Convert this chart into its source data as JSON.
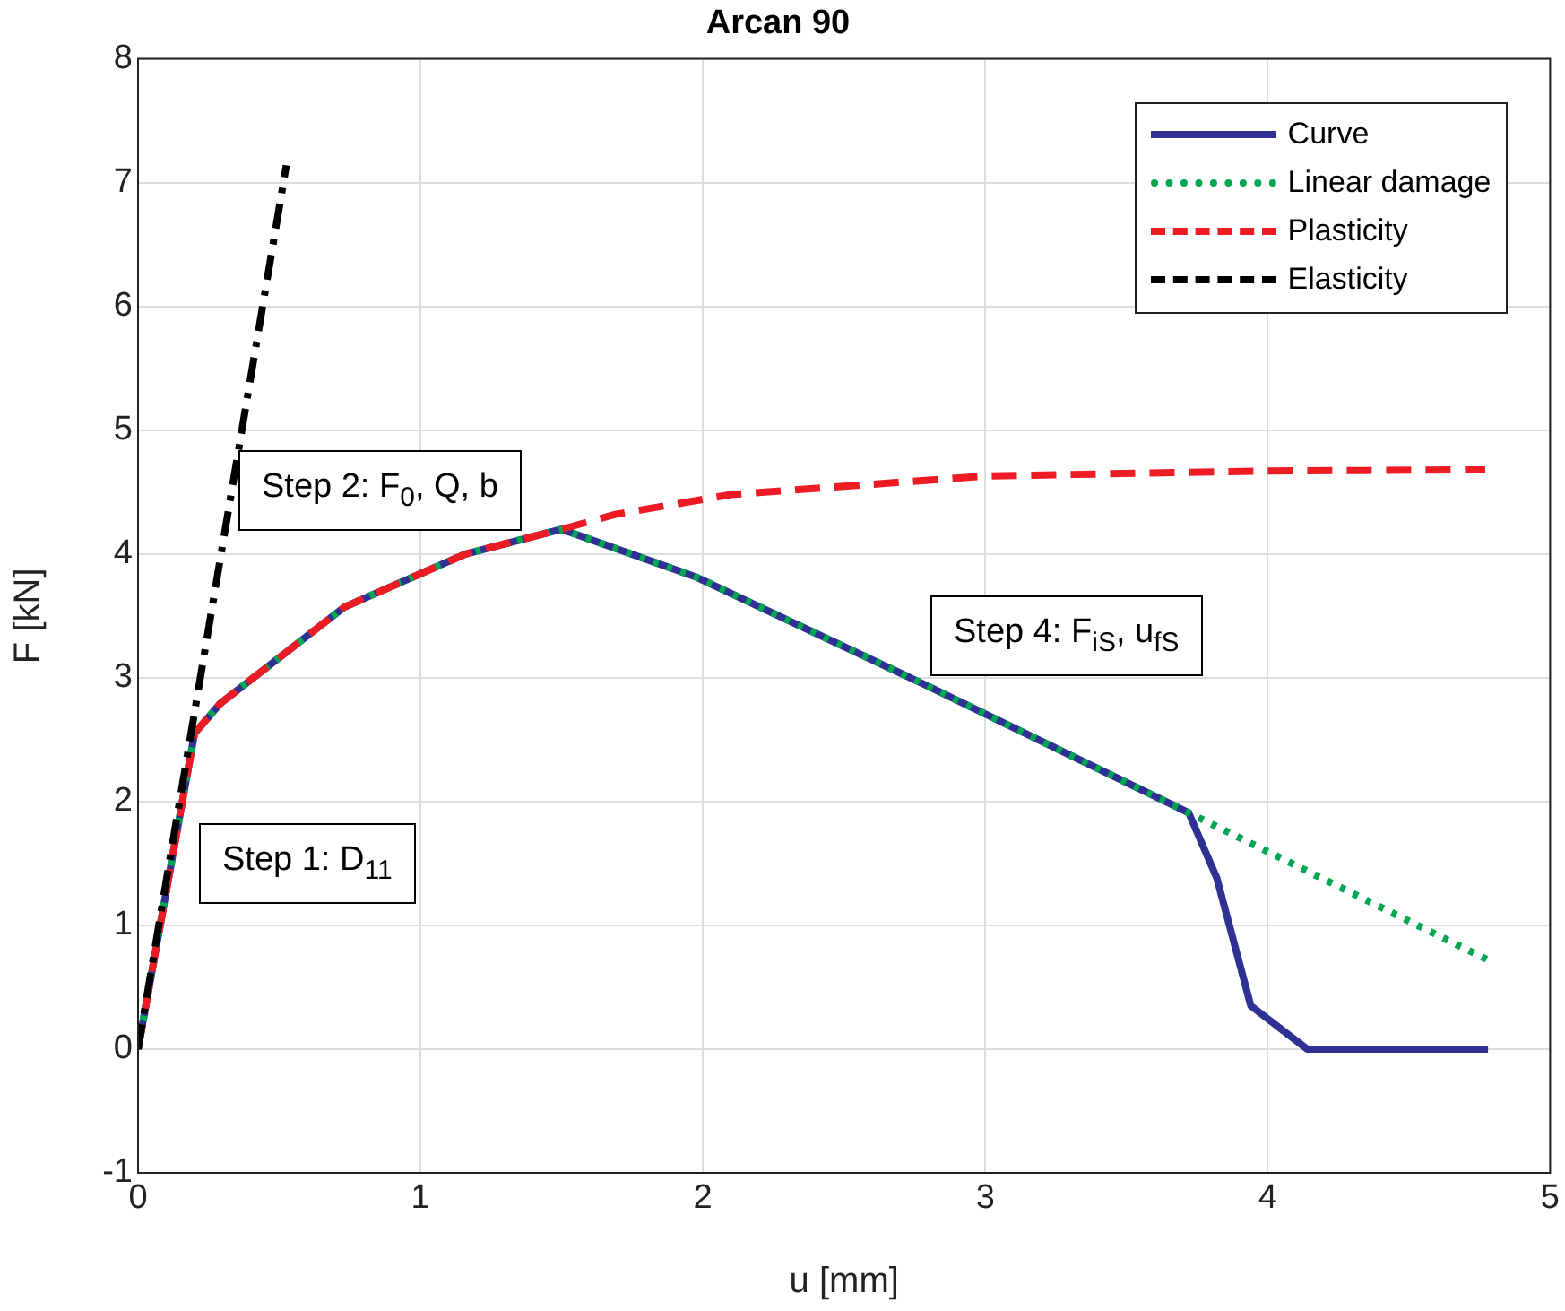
{
  "chart_data": {
    "type": "line",
    "title": "Arcan 90",
    "xlabel": "u [mm]",
    "ylabel": "F [kN]",
    "xlim": [
      0,
      5
    ],
    "xticks": [
      0,
      1,
      2,
      3,
      4,
      5
    ],
    "ylim": [
      -1,
      8
    ],
    "yticks": [
      -1,
      0,
      1,
      2,
      3,
      4,
      5,
      6,
      7,
      8
    ],
    "grid": true,
    "legend": "top right",
    "marker": "none",
    "annotations": [
      "Step 1: D$_{11}$",
      "Step 2: F$_{0}$, Q, b",
      "Step 4: F$_{iS}$, u$_{fS}$"
    ],
    "series": [
      {
        "name": "Curve",
        "color": "#2e3192",
        "line_style": "solid",
        "x": [
          0,
          0.2,
          0.29,
          0.73,
          1.16,
          1.5,
          1.98,
          2.79,
          3.72,
          3.82,
          3.94,
          4.14,
          4.78
        ],
        "values": [
          0,
          2.55,
          2.79,
          3.57,
          4.0,
          4.2,
          3.81,
          2.94,
          1.91,
          1.38,
          0.35,
          0,
          0
        ]
      },
      {
        "name": "Linear damage",
        "color": "#00a651",
        "line_style": "dotted",
        "x": [
          0,
          0.2,
          0.29,
          0.73,
          1.16,
          1.5,
          1.98,
          2.79,
          3.72,
          4.78
        ],
        "values": [
          0,
          2.55,
          2.79,
          3.57,
          4.0,
          4.2,
          3.81,
          2.94,
          1.91,
          0.72
        ]
      },
      {
        "name": "Plasticity",
        "color": "#ed1c24",
        "line_style": "dashed",
        "x": [
          0,
          0.2,
          0.29,
          0.73,
          1.16,
          1.5,
          1.69,
          2.1,
          3.0,
          3.99,
          4.77
        ],
        "values": [
          0,
          2.55,
          2.79,
          3.57,
          4.0,
          4.2,
          4.32,
          4.48,
          4.63,
          4.67,
          4.68
        ]
      },
      {
        "name": "Elasticity",
        "color": "#000000",
        "line_style": "dashdot",
        "x": [
          0,
          0.525
        ],
        "values": [
          0,
          7.14
        ]
      }
    ]
  }
}
